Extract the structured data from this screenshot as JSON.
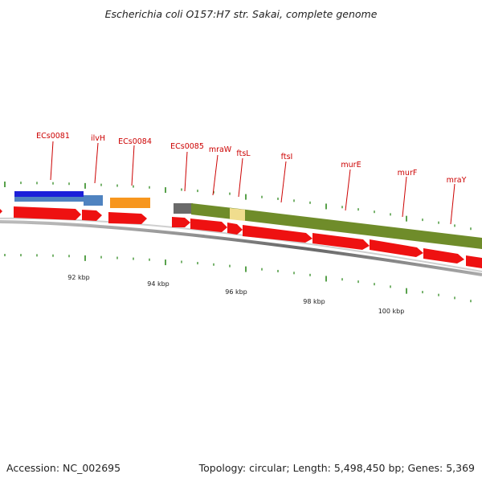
{
  "title": "Escherichia coli O157:H7 str. Sakai, complete genome",
  "footer": {
    "accession": "Accession: NC_002695",
    "summary": "Topology: circular; Length: 5,498,450 bp; Genes: 5,369"
  },
  "colors": {
    "backbone": "#777777",
    "gene_arrow": "#ee1111",
    "tick": "#2f8a1f",
    "label": "#cc0000",
    "label_line": "#cc0000"
  },
  "gene_labels": [
    {
      "name": "ECs0081"
    },
    {
      "name": "ilvH"
    },
    {
      "name": "ECs0084"
    },
    {
      "name": "ECs0085"
    },
    {
      "name": "mraW"
    },
    {
      "name": "ftsL"
    },
    {
      "name": "ftsI"
    },
    {
      "name": "murE"
    },
    {
      "name": "murF"
    },
    {
      "name": "mraY"
    }
  ],
  "scale_labels": [
    "92 kbp",
    "94 kbp",
    "96 kbp",
    "98 kbp",
    "100 kbp"
  ],
  "feature_colors": [
    "#1c1fd9",
    "#4f83c0",
    "#f7961e",
    "#6a6a6a",
    "#6f8c2a",
    "#f0dd8e"
  ]
}
